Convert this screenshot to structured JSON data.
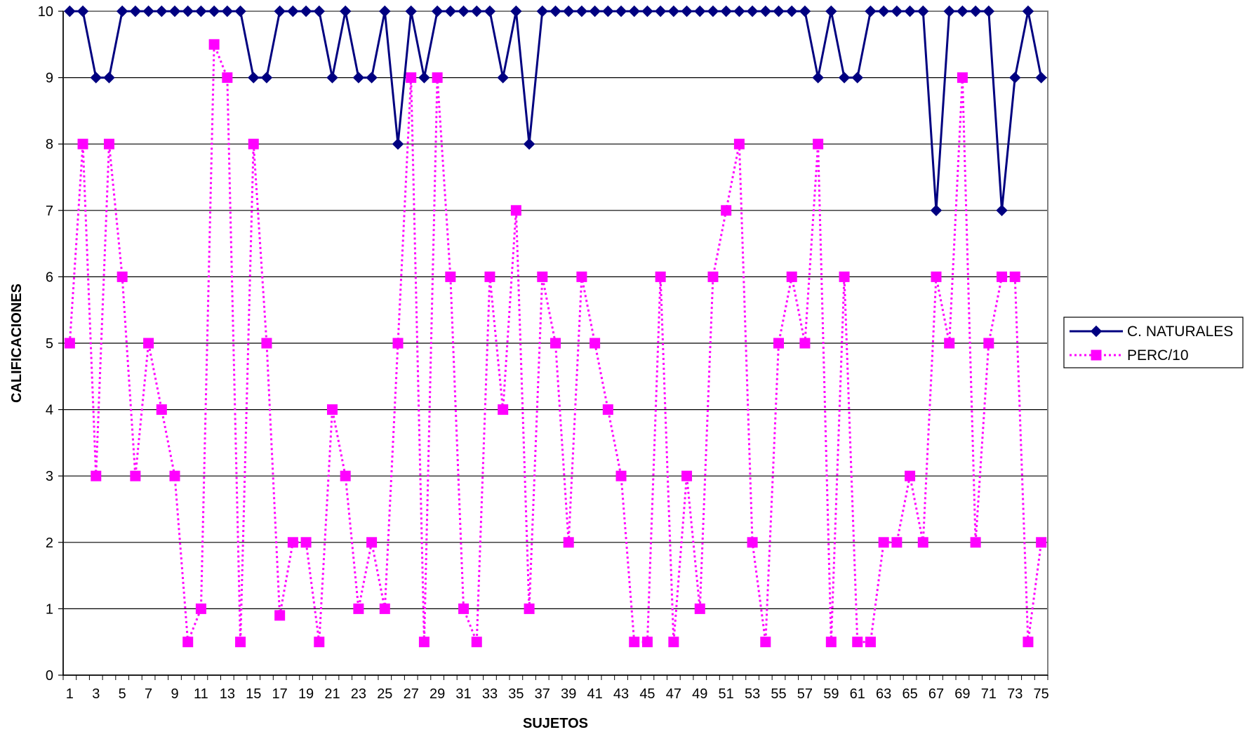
{
  "chart_data": {
    "type": "line",
    "xlabel": "SUJETOS",
    "ylabel": "CALIFICACIONES",
    "ylim": [
      0,
      10
    ],
    "yticks": [
      0,
      1,
      2,
      3,
      4,
      5,
      6,
      7,
      8,
      9,
      10
    ],
    "x": [
      1,
      2,
      3,
      4,
      5,
      6,
      7,
      8,
      9,
      10,
      11,
      12,
      13,
      14,
      15,
      16,
      17,
      18,
      19,
      20,
      21,
      22,
      23,
      24,
      25,
      26,
      27,
      28,
      29,
      30,
      31,
      32,
      33,
      34,
      35,
      36,
      37,
      38,
      39,
      40,
      41,
      42,
      43,
      44,
      45,
      46,
      47,
      48,
      49,
      50,
      51,
      52,
      53,
      54,
      55,
      56,
      57,
      58,
      59,
      60,
      61,
      62,
      63,
      64,
      65,
      66,
      67,
      68,
      69,
      70,
      71,
      72,
      73,
      74,
      75
    ],
    "xtick_labels": [
      "1",
      "3",
      "5",
      "7",
      "9",
      "11",
      "13",
      "15",
      "17",
      "19",
      "21",
      "23",
      "25",
      "27",
      "29",
      "31",
      "33",
      "35",
      "37",
      "39",
      "41",
      "43",
      "45",
      "47",
      "49",
      "51",
      "53",
      "55",
      "57",
      "59",
      "61",
      "63",
      "65",
      "67",
      "69",
      "71",
      "73",
      "75"
    ],
    "grid": "horizontal",
    "legend_position": "right",
    "series": [
      {
        "name": "C. NATURALES",
        "color": "#000080",
        "marker": "diamond",
        "line_style": "solid",
        "values": [
          10,
          10,
          9,
          9,
          10,
          10,
          10,
          10,
          10,
          10,
          10,
          10,
          10,
          10,
          9,
          9,
          10,
          10,
          10,
          10,
          9,
          10,
          9,
          9,
          10,
          8,
          10,
          9,
          10,
          10,
          10,
          10,
          10,
          9,
          10,
          8,
          10,
          10,
          10,
          10,
          10,
          10,
          10,
          10,
          10,
          10,
          10,
          10,
          10,
          10,
          10,
          10,
          10,
          10,
          10,
          10,
          10,
          9,
          10,
          9,
          9,
          10,
          10,
          10,
          10,
          10,
          7,
          10,
          10,
          10,
          10,
          7,
          9,
          10,
          9
        ]
      },
      {
        "name": "PERC/10",
        "color": "#ff00ff",
        "marker": "square",
        "line_style": "dotted",
        "values": [
          5,
          8,
          3,
          8,
          6,
          3,
          5,
          4,
          3,
          0.5,
          1,
          9.5,
          9,
          0.5,
          8,
          5,
          0.9,
          2,
          2,
          0.5,
          4,
          3,
          1,
          2,
          1,
          5,
          9,
          0.5,
          9,
          6,
          1,
          0.5,
          6,
          4,
          7,
          1,
          6,
          5,
          2,
          6,
          5,
          4,
          3,
          0.5,
          0.5,
          6,
          0.5,
          3,
          1,
          6,
          7,
          8,
          2,
          0.5,
          5,
          6,
          5,
          8,
          0.5,
          6,
          0.5,
          0.5,
          2,
          2,
          3,
          2,
          6,
          5,
          9,
          2,
          5,
          6,
          6,
          0.5,
          2
        ]
      }
    ]
  }
}
